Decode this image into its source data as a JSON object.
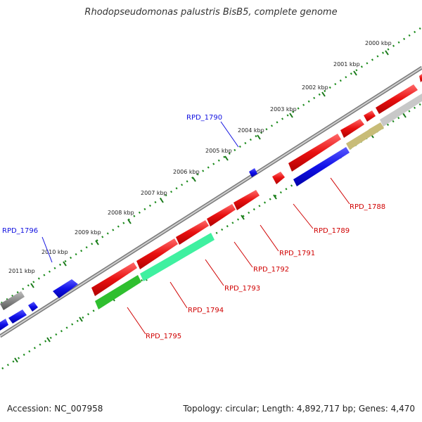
{
  "title": "Rhodopseudomonas palustris BisB5, complete genome",
  "accession_text": "Accession: NC_007958",
  "summary_text": "Topology: circular; Length: 4,892,717 bp; Genes: 4,470",
  "scale_ticks": [
    "2000 kbp",
    "2001 kbp",
    "2002 kbp",
    "2003 kbp",
    "2004 kbp",
    "2005 kbp",
    "2006 kbp",
    "2007 kbp",
    "2008 kbp",
    "2009 kbp",
    "2010 kbp",
    "2011 kbp"
  ],
  "gene_labels": {
    "RPD_1790": "RPD_1790",
    "RPD_1796": "RPD_1796",
    "RPD_1788": "RPD_1788",
    "RPD_1789": "RPD_1789",
    "RPD_1791": "RPD_1791",
    "RPD_1792": "RPD_1792",
    "RPD_1793": "RPD_1793",
    "RPD_1794": "RPD_1794",
    "RPD_1795": "RPD_1795"
  },
  "colors": {
    "forward_gene": "#e01010",
    "reverse_gene": "#1010e0",
    "rna_green": "#33cc33",
    "rna_teal": "#33e8a0",
    "other_gray": "#bbbbbb",
    "other_khaki": "#c8bc78",
    "scale_green": "#1a7a1a",
    "backbone": "#888888"
  }
}
